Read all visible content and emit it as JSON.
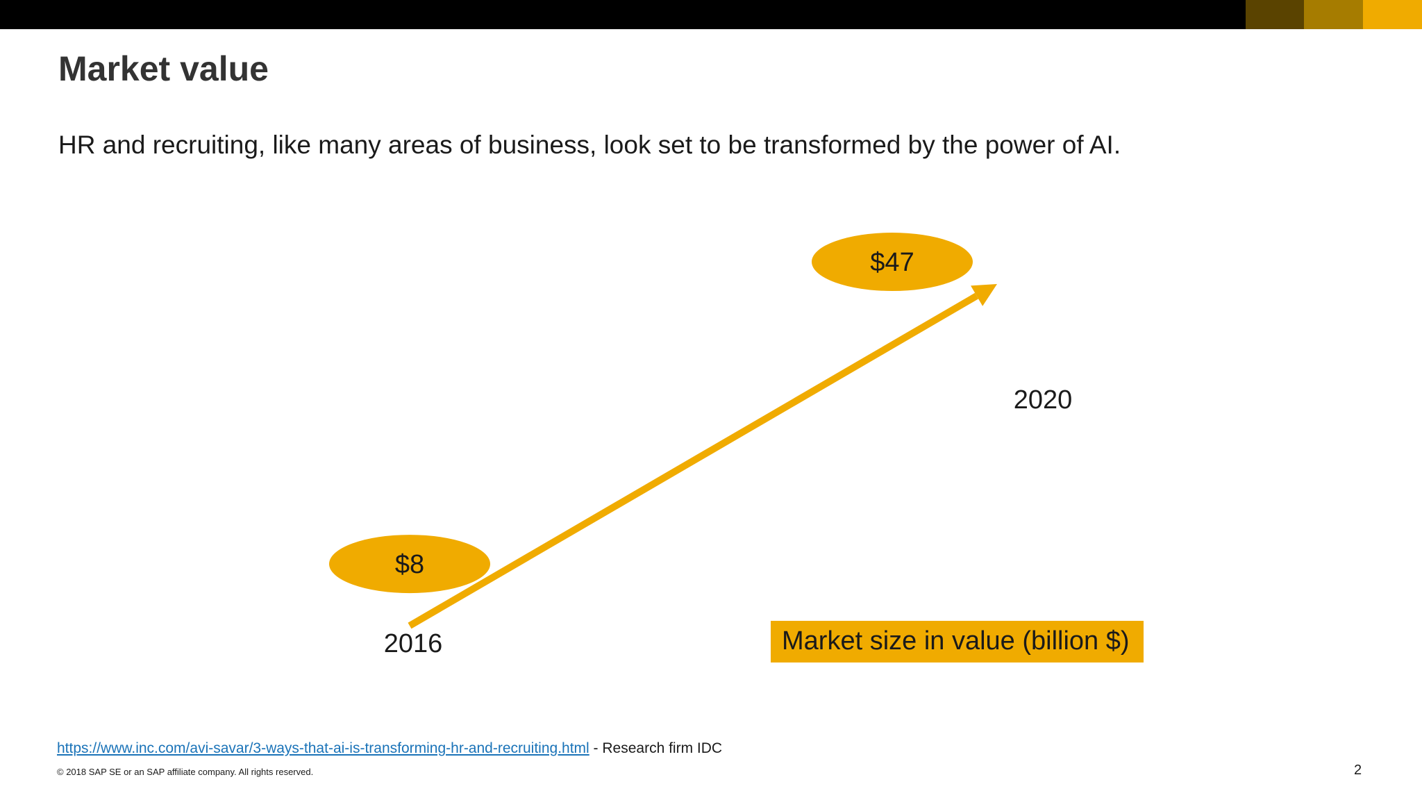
{
  "colors": {
    "topbar": "#000000",
    "accent_dark": "#5a4300",
    "accent_mid": "#a67c00",
    "accent": "#f0ab00",
    "text": "#1a1a1a",
    "link": "#1a73b8"
  },
  "slide": {
    "title": "Market value",
    "subtitle": "HR and recruiting, like many areas of business, look set to be transformed by the power of AI.",
    "source_link": "https://www.inc.com/avi-savar/3-ways-that-ai-is-transforming-hr-and-recruiting.html",
    "source_suffix": " - Research firm IDC",
    "copyright": "© 2018 SAP SE or an SAP affiliate company. All rights reserved.",
    "page_number": "2"
  },
  "chart_data": {
    "type": "line",
    "x": [
      "2016",
      "2020"
    ],
    "series": [
      {
        "name": "Market size in value (billion $)",
        "values": [
          8,
          47
        ],
        "labels": [
          "$8",
          "$47"
        ]
      }
    ],
    "legend": "bottom-right",
    "grid": false
  }
}
